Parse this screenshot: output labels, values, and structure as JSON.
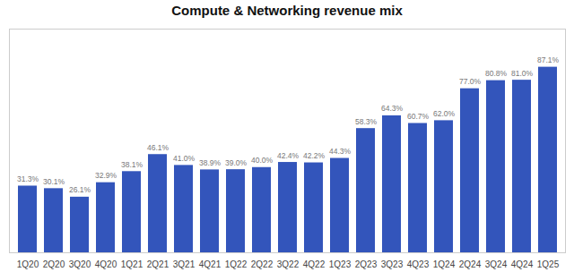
{
  "chart_data": {
    "type": "bar",
    "title": "Compute & Networking revenue mix",
    "categories": [
      "1Q20",
      "2Q20",
      "3Q20",
      "4Q20",
      "1Q21",
      "2Q21",
      "3Q21",
      "4Q21",
      "1Q22",
      "2Q22",
      "3Q22",
      "4Q22",
      "1Q23",
      "2Q23",
      "3Q23",
      "4Q23",
      "1Q24",
      "2Q24",
      "3Q24",
      "4Q24",
      "1Q25"
    ],
    "values": [
      31.3,
      30.1,
      26.1,
      32.9,
      38.1,
      46.1,
      41.0,
      38.9,
      39.0,
      40.0,
      42.4,
      42.2,
      44.3,
      58.3,
      64.3,
      60.7,
      62.0,
      77.0,
      80.8,
      81.0,
      87.1
    ],
    "value_labels": [
      "31.3%",
      "30.1%",
      "26.1%",
      "32.9%",
      "38.1%",
      "46.1%",
      "41.0%",
      "38.9%",
      "39.0%",
      "40.0%",
      "42.4%",
      "42.2%",
      "44.3%",
      "58.3%",
      "64.3%",
      "60.7%",
      "62.0%",
      "77.0%",
      "80.8%",
      "81.0%",
      "87.1%"
    ],
    "color": "#3355BB",
    "ylim": [
      0,
      105
    ],
    "grid": false,
    "data_labels": true,
    "tick_labels": "x"
  }
}
